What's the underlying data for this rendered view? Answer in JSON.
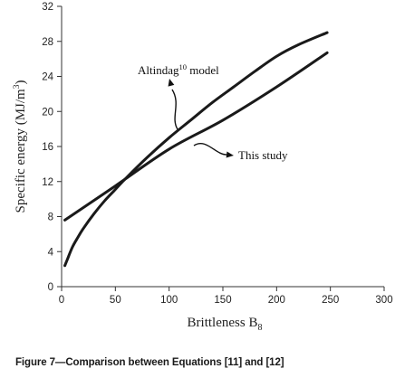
{
  "chart_data": {
    "type": "line",
    "xlabel": "Brittleness B",
    "xlabel_subscript": "8",
    "ylabel": "Specific energy (MJ/m",
    "ylabel_superscript": "3",
    "ylabel_close": ")",
    "xlim": [
      0,
      300
    ],
    "ylim": [
      0,
      32
    ],
    "xticks": [
      0,
      50,
      100,
      150,
      200,
      250,
      300
    ],
    "yticks": [
      0,
      4,
      8,
      12,
      16,
      20,
      24,
      28,
      32
    ],
    "grid": false,
    "series": [
      {
        "name": "Altindag model",
        "x": [
          3,
          5,
          10,
          15,
          20,
          30,
          40,
          50,
          60,
          80,
          100,
          120,
          140,
          160,
          180,
          200,
          220,
          247
        ],
        "y": [
          2.4,
          3.0,
          4.5,
          5.6,
          6.6,
          8.3,
          9.8,
          11.1,
          12.4,
          14.8,
          17.0,
          19.0,
          21.0,
          22.8,
          24.6,
          26.3,
          27.6,
          29.0
        ]
      },
      {
        "name": "This study",
        "x": [
          3,
          50,
          100,
          150,
          200,
          247
        ],
        "y": [
          7.6,
          11.5,
          15.7,
          19.0,
          22.8,
          26.7
        ]
      }
    ],
    "annotations": [
      {
        "series": "Altindag model",
        "text": "Altindag",
        "superscript": "10",
        "suffix": " model"
      },
      {
        "series": "This study",
        "text": "This study"
      }
    ]
  },
  "caption": "Figure 7—Comparison between Equations [11] and [12]"
}
